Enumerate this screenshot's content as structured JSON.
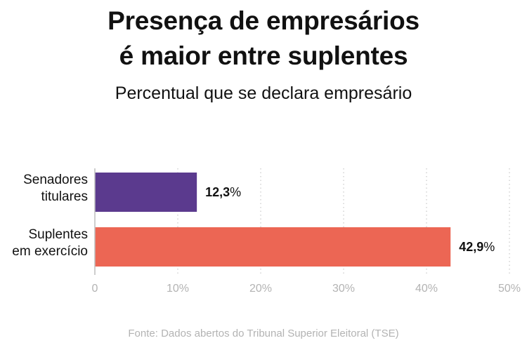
{
  "chart_data": {
    "type": "bar",
    "orientation": "horizontal",
    "title_lines": [
      "Presença de empresários",
      "é maior entre suplentes"
    ],
    "subtitle": "Percentual que se declara empresário",
    "categories": [
      [
        "Senadores",
        "titulares"
      ],
      [
        "Suplentes",
        "em exercício"
      ]
    ],
    "values": [
      12.3,
      42.9
    ],
    "value_labels": [
      "12,3",
      "42,9"
    ],
    "value_suffix": "%",
    "colors": [
      "#5b3a8e",
      "#ec6654"
    ],
    "xlim": [
      0,
      50
    ],
    "ticks": [
      0,
      10,
      20,
      30,
      40,
      50
    ],
    "tick_labels": [
      "0",
      "10%",
      "20%",
      "30%",
      "40%",
      "50%"
    ],
    "grid": "vertical-dotted",
    "source": "Fonte: Dados abertos do Tribunal Superior Eleitoral (TSE)"
  }
}
